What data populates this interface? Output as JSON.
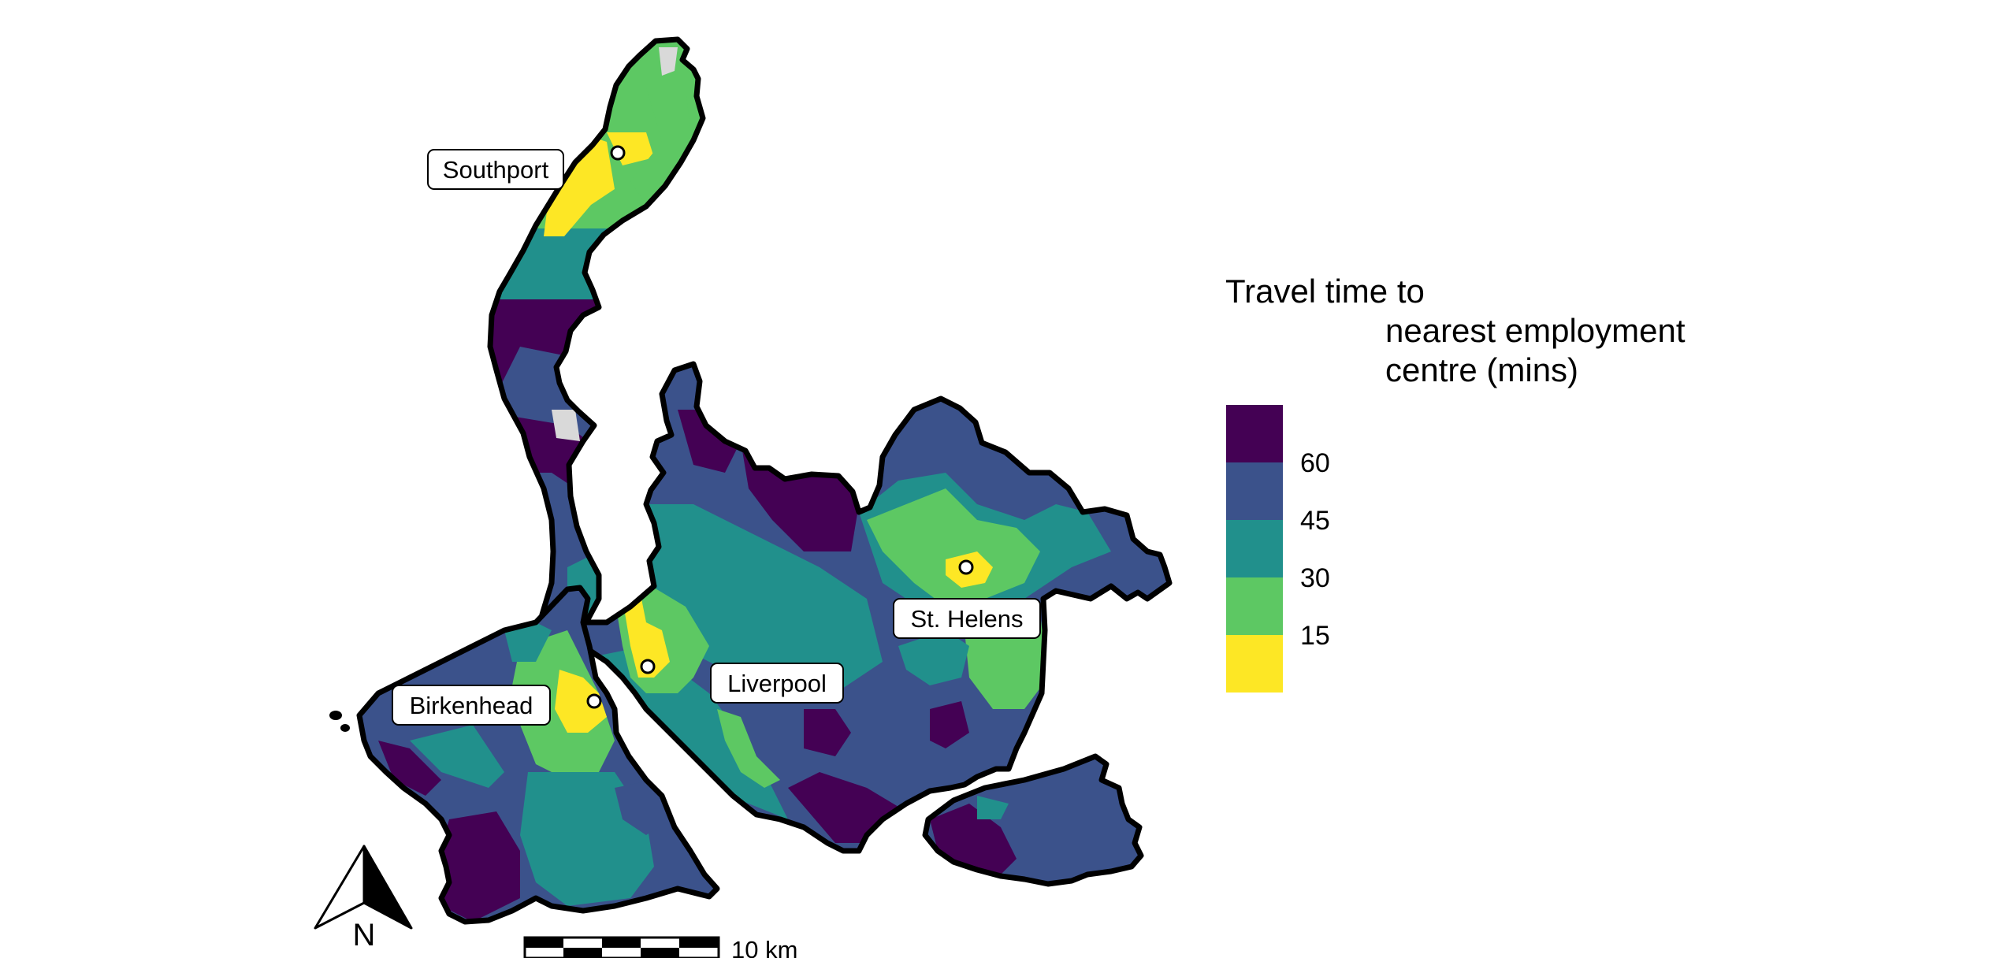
{
  "legend": {
    "title_lines": [
      "Travel time to",
      "nearest employment",
      "centre (mins)"
    ],
    "breaks": [
      "60",
      "45",
      "30",
      "15"
    ],
    "colors": [
      "#440154",
      "#3b528b",
      "#21908c",
      "#5dc863",
      "#fde725"
    ]
  },
  "places": [
    {
      "name": "Southport"
    },
    {
      "name": "St. Helens"
    },
    {
      "name": "Liverpool"
    },
    {
      "name": "Birkenhead"
    }
  ],
  "scale_bar": {
    "label": "10 km"
  },
  "north_arrow": {
    "label": "N"
  },
  "colors": {
    "outline": "#000000",
    "missing": "#d9d9d9",
    "background": "#ffffff"
  }
}
